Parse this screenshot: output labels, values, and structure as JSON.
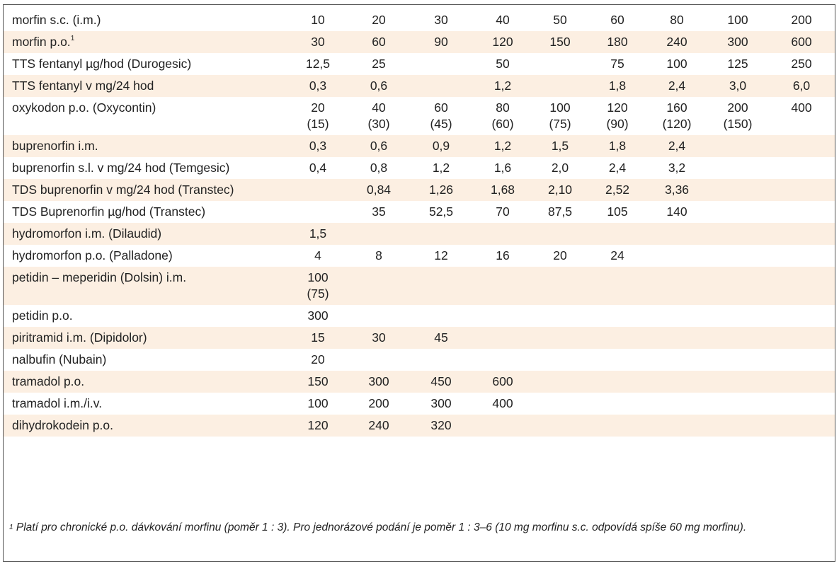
{
  "rows": [
    {
      "label": "morfin s.c. (i.m.)",
      "values": [
        "10",
        "20",
        "30",
        "40",
        "50",
        "60",
        "80",
        "100",
        "200"
      ]
    },
    {
      "label": "morfin p.o.",
      "footnote_marker": "1",
      "values": [
        "30",
        "60",
        "90",
        "120",
        "150",
        "180",
        "240",
        "300",
        "600"
      ]
    },
    {
      "label": "TTS fentanyl µg/hod (Durogesic)",
      "values": [
        "12,5",
        "25",
        "",
        "50",
        "",
        "75",
        "100",
        "125",
        "250"
      ]
    },
    {
      "label": "TTS fentanyl v mg/24 hod",
      "values": [
        "0,3",
        "0,6",
        "",
        "1,2",
        "",
        "1,8",
        "2,4",
        "3,0",
        "6,0"
      ]
    },
    {
      "label": "oxykodon p.o. (Oxycontin)",
      "values": [
        "20",
        "40",
        "60",
        "80",
        "100",
        "120",
        "160",
        "200",
        "400"
      ],
      "subvalues": [
        "(15)",
        "(30)",
        "(45)",
        "(60)",
        "(75)",
        "(90)",
        "(120)",
        "(150)",
        ""
      ]
    },
    {
      "label": "buprenorfin i.m.",
      "values": [
        "0,3",
        "0,6",
        "0,9",
        "1,2",
        "1,5",
        "1,8",
        "2,4",
        "",
        ""
      ]
    },
    {
      "label": "buprenorfin s.l. v mg/24 hod (Temgesic)",
      "values": [
        "0,4",
        "0,8",
        "1,2",
        "1,6",
        "2,0",
        "2,4",
        "3,2",
        "",
        ""
      ]
    },
    {
      "label": "TDS buprenorfin v mg/24 hod (Transtec)",
      "values": [
        "",
        "0,84",
        "1,26",
        "1,68",
        "2,10",
        "2,52",
        "3,36",
        "",
        ""
      ]
    },
    {
      "label": "TDS Buprenorfin µg/hod (Transtec)",
      "values": [
        "",
        "35",
        "52,5",
        "70",
        "87,5",
        "105",
        "140",
        "",
        ""
      ]
    },
    {
      "label": "hydromorfon i.m. (Dilaudid)",
      "values": [
        "1,5",
        "",
        "",
        "",
        "",
        "",
        "",
        "",
        ""
      ]
    },
    {
      "label": "hydromorfon p.o. (Palladone)",
      "values": [
        "4",
        "8",
        "12",
        "16",
        "20",
        "24",
        "",
        "",
        ""
      ]
    },
    {
      "label": "petidin – meperidin (Dolsin) i.m.",
      "values": [
        "100",
        "",
        "",
        "",
        "",
        "",
        "",
        "",
        ""
      ],
      "subvalues": [
        "(75)",
        "",
        "",
        "",
        "",
        "",
        "",
        "",
        ""
      ]
    },
    {
      "label": "petidin p.o.",
      "values": [
        "300",
        "",
        "",
        "",
        "",
        "",
        "",
        "",
        ""
      ]
    },
    {
      "label": "piritramid i.m. (Dipidolor)",
      "values": [
        "15",
        "30",
        "45",
        "",
        "",
        "",
        "",
        "",
        ""
      ]
    },
    {
      "label": "nalbufin (Nubain)",
      "values": [
        "20",
        "",
        "",
        "",
        "",
        "",
        "",
        "",
        ""
      ]
    },
    {
      "label": "tramadol p.o.",
      "values": [
        "150",
        "300",
        "450",
        "600",
        "",
        "",
        "",
        "",
        ""
      ]
    },
    {
      "label": "tramadol i.m./i.v.",
      "values": [
        "100",
        "200",
        "300",
        "400",
        "",
        "",
        "",
        "",
        ""
      ]
    },
    {
      "label": "dihydrokodein p.o.",
      "values": [
        "120",
        "240",
        "320",
        "",
        "",
        "",
        "",
        "",
        ""
      ]
    }
  ],
  "footnote": {
    "marker": "1",
    "text": " Platí pro chronické p.o. dávkování morfinu (poměr 1 : 3). Pro jednorázové podání je poměr 1 : 3–6 (10 mg morfinu s.c. odpovídá spíše 60 mg morfinu)."
  },
  "colors": {
    "shaded_row": "#fcefe2",
    "border": "#555555"
  }
}
